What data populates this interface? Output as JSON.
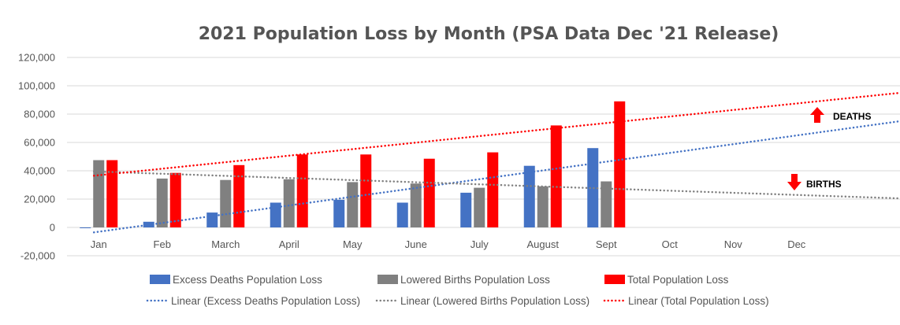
{
  "chart_data": {
    "type": "bar",
    "title": "2021 Population Loss by Month (PSA Data Dec '21 Release)",
    "categories": [
      "Jan",
      "Feb",
      "March",
      "April",
      "May",
      "June",
      "July",
      "August",
      "Sept",
      "Oct",
      "Nov",
      "Dec"
    ],
    "series": [
      {
        "name": "Excess Deaths Population Loss",
        "color": "#4472C4",
        "values": [
          -500,
          4000,
          10500,
          17500,
          19500,
          17500,
          24500,
          43500,
          56000,
          null,
          null,
          null
        ]
      },
      {
        "name": "Lowered Births Population Loss",
        "color": "#808080",
        "values": [
          47500,
          34500,
          33500,
          34000,
          32000,
          31000,
          28000,
          29000,
          32500,
          null,
          null,
          null
        ]
      },
      {
        "name": "Total Population Loss",
        "color": "#FF0000",
        "values": [
          47500,
          38500,
          44000,
          51500,
          51500,
          48500,
          53000,
          72000,
          89000,
          null,
          null,
          null
        ]
      }
    ],
    "trendlines": [
      {
        "name": "Linear (Excess Deaths Population Loss)",
        "color": "#4472C4",
        "start": -3500,
        "end": 75000
      },
      {
        "name": "Linear (Lowered Births Population Loss)",
        "color": "#808080",
        "start": 39500,
        "end": 20500
      },
      {
        "name": "Linear (Total Population Loss)",
        "color": "#FF0000",
        "start": 36500,
        "end": 95000
      }
    ],
    "y_ticks": [
      "120,000",
      "100,000",
      "80,000",
      "60,000",
      "40,000",
      "20,000",
      "0",
      "-20,000"
    ],
    "ylim": [
      -20000,
      120000
    ],
    "grid": true,
    "legend_position": "bottom",
    "annotations": [
      {
        "text": "DEATHS",
        "arrow": "up",
        "color": "#FF0000"
      },
      {
        "text": "BIRTHS",
        "arrow": "down",
        "color": "#FF0000"
      }
    ]
  }
}
